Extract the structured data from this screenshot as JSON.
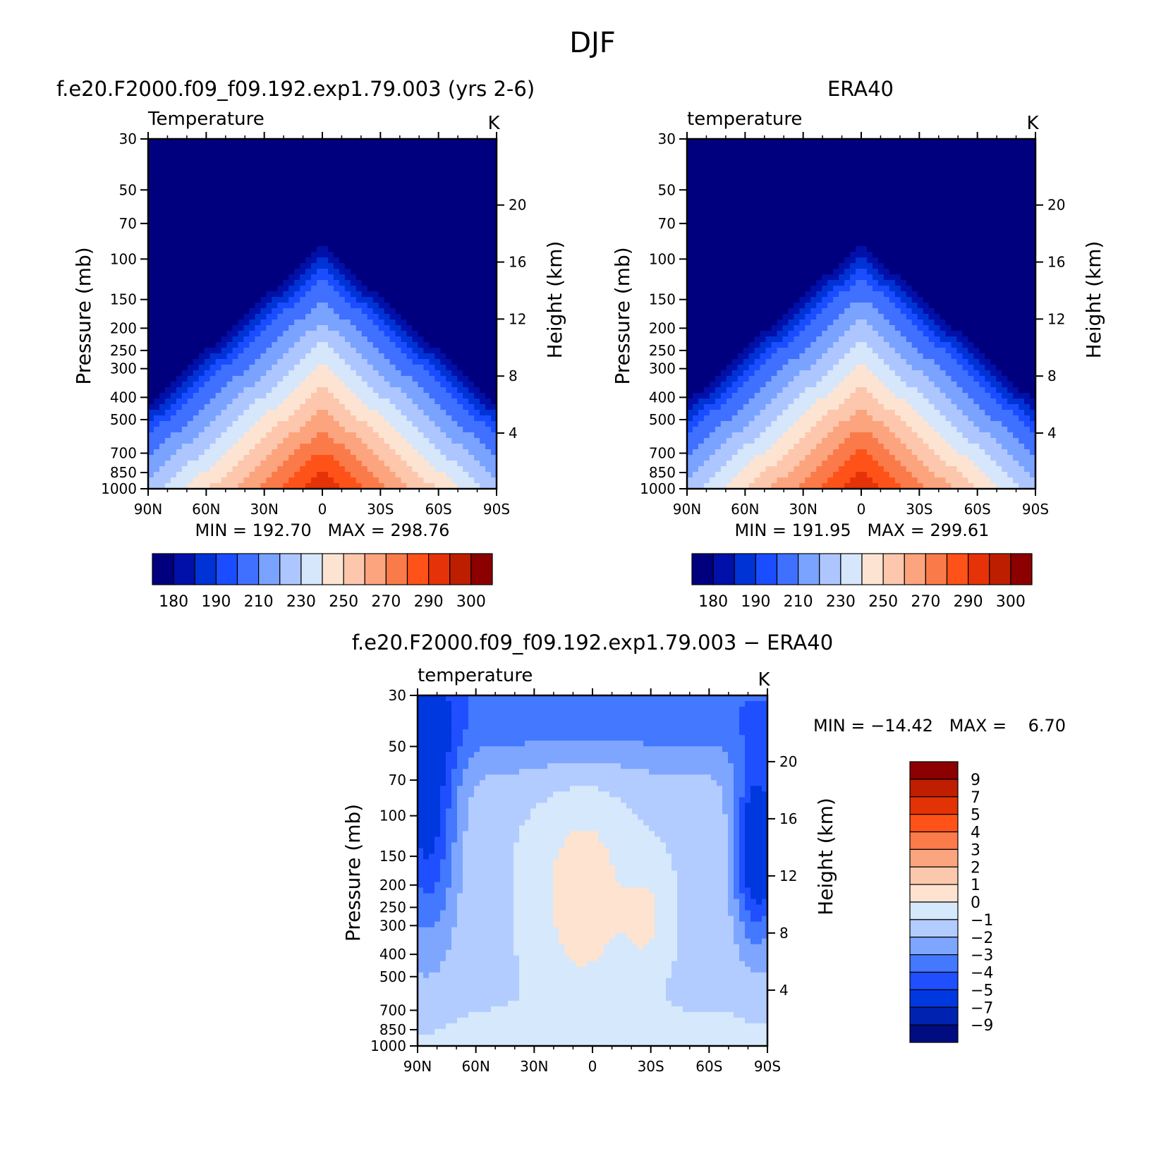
{
  "figure": {
    "title": "DJF"
  },
  "colors": {
    "abs": [
      "#00007f",
      "#0010a8",
      "#0033d6",
      "#1a4dff",
      "#4070ff",
      "#7aa2ff",
      "#aec6ff",
      "#d6e6fb",
      "#fde4d2",
      "#fcc7ac",
      "#fba47d",
      "#fb7a4a",
      "#ff5218",
      "#e63208",
      "#be1e00",
      "#8c0000"
    ],
    "diff": [
      "#000c80",
      "#0022b0",
      "#0038df",
      "#1f4fff",
      "#4378ff",
      "#7ea6ff",
      "#b2ccff",
      "#d6e8fb",
      "#fde3d0",
      "#fcc8ad",
      "#fba57e",
      "#fb7b4a",
      "#ff5218",
      "#e33206",
      "#bf1e00",
      "#8c0000"
    ]
  },
  "chart_data": [
    {
      "type": "heatmap",
      "panel": "model",
      "title": "f.e20.F2000.f09_f09.192.exp1.79.003 (yrs 2-6)",
      "left_label": "Temperature",
      "units": "K",
      "ylabel": "Pressure (mb)",
      "ylabel_right": "Height (km)",
      "x_ticks": [
        "90N",
        "60N",
        "30N",
        "0",
        "30S",
        "60S",
        "90S"
      ],
      "xlim": [
        90,
        -90
      ],
      "y_ticks": [
        30,
        50,
        70,
        100,
        150,
        200,
        250,
        300,
        400,
        500,
        700,
        850,
        1000
      ],
      "ylim": [
        30,
        1000
      ],
      "yscale": "log",
      "height_ticks": [
        4,
        8,
        12,
        16,
        20
      ],
      "minmax_text": "MIN = 192.70   MAX = 298.76",
      "min": 192.7,
      "max": 298.76,
      "colorbar_labels": [
        "180",
        "190",
        "210",
        "230",
        "250",
        "270",
        "290",
        "300"
      ],
      "colorbar_levels": [
        175,
        180,
        185,
        190,
        200,
        210,
        220,
        230,
        240,
        250,
        260,
        270,
        280,
        290,
        295,
        300
      ]
    },
    {
      "type": "heatmap",
      "panel": "obs",
      "title": "ERA40",
      "left_label": "temperature",
      "units": "K",
      "ylabel": "Pressure (mb)",
      "ylabel_right": "Height (km)",
      "x_ticks": [
        "90N",
        "60N",
        "30N",
        "0",
        "30S",
        "60S",
        "90S"
      ],
      "xlim": [
        90,
        -90
      ],
      "y_ticks": [
        30,
        50,
        70,
        100,
        150,
        200,
        250,
        300,
        400,
        500,
        700,
        850,
        1000
      ],
      "ylim": [
        30,
        1000
      ],
      "yscale": "log",
      "height_ticks": [
        4,
        8,
        12,
        16,
        20
      ],
      "minmax_text": "MIN = 191.95   MAX = 299.61",
      "min": 191.95,
      "max": 299.61,
      "colorbar_labels": [
        "180",
        "190",
        "210",
        "230",
        "250",
        "270",
        "290",
        "300"
      ],
      "colorbar_levels": [
        175,
        180,
        185,
        190,
        200,
        210,
        220,
        230,
        240,
        250,
        260,
        270,
        280,
        290,
        295,
        300
      ]
    },
    {
      "type": "heatmap",
      "panel": "diff",
      "title": "f.e20.F2000.f09_f09.192.exp1.79.003 − ERA40",
      "left_label": "temperature",
      "units": "K",
      "ylabel": "Pressure (mb)",
      "ylabel_right": "Height (km)",
      "x_ticks": [
        "90N",
        "60N",
        "30N",
        "0",
        "30S",
        "60S",
        "90S"
      ],
      "xlim": [
        90,
        -90
      ],
      "y_ticks": [
        30,
        50,
        70,
        100,
        150,
        200,
        250,
        300,
        400,
        500,
        700,
        850,
        1000
      ],
      "ylim": [
        30,
        1000
      ],
      "yscale": "log",
      "height_ticks": [
        4,
        8,
        12,
        16,
        20
      ],
      "minmax_text": "MIN = −14.42   MAX =    6.70",
      "min": -14.42,
      "max": 6.7,
      "colorbar_labels": [
        "9",
        "7",
        "5",
        "4",
        "3",
        "2",
        "1",
        "0",
        "−1",
        "−2",
        "−3",
        "−4",
        "−5",
        "−7",
        "−9"
      ],
      "colorbar_levels": [
        -9,
        -7,
        -5,
        -4,
        -3,
        -2,
        -1,
        0,
        1,
        2,
        3,
        4,
        5,
        7,
        9
      ]
    }
  ]
}
